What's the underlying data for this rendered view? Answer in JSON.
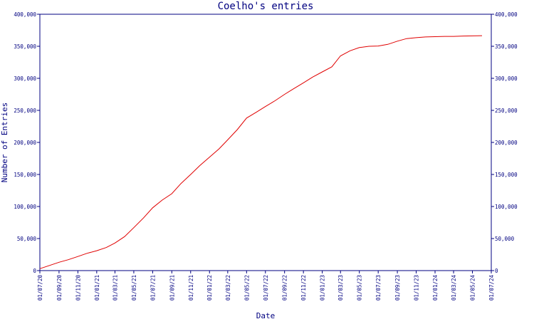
{
  "chart_data": {
    "type": "line",
    "title": "Coelho's entries",
    "xlabel": "Date",
    "ylabel": "Number of Entries",
    "ylim": [
      0,
      400000
    ],
    "y_ticks": [
      {
        "value": 0,
        "label": "0"
      },
      {
        "value": 50000,
        "label": "50,000"
      },
      {
        "value": 100000,
        "label": "100,000"
      },
      {
        "value": 150000,
        "label": "150,000"
      },
      {
        "value": 200000,
        "label": "200,000"
      },
      {
        "value": 250000,
        "label": "250,000"
      },
      {
        "value": 300000,
        "label": "300,000"
      },
      {
        "value": 350000,
        "label": "350,000"
      },
      {
        "value": 400000,
        "label": "400,000"
      }
    ],
    "x_range": [
      "2020-07-01",
      "2024-07-01"
    ],
    "x_ticks": [
      {
        "date": "2020-07-01",
        "label": "01/07/20"
      },
      {
        "date": "2020-09-01",
        "label": "01/09/20"
      },
      {
        "date": "2020-11-01",
        "label": "01/11/20"
      },
      {
        "date": "2021-01-01",
        "label": "01/01/21"
      },
      {
        "date": "2021-03-01",
        "label": "01/03/21"
      },
      {
        "date": "2021-05-01",
        "label": "01/05/21"
      },
      {
        "date": "2021-07-01",
        "label": "01/07/21"
      },
      {
        "date": "2021-09-01",
        "label": "01/09/21"
      },
      {
        "date": "2021-11-01",
        "label": "01/11/21"
      },
      {
        "date": "2022-01-01",
        "label": "01/01/22"
      },
      {
        "date": "2022-03-01",
        "label": "01/03/22"
      },
      {
        "date": "2022-05-01",
        "label": "01/05/22"
      },
      {
        "date": "2022-07-01",
        "label": "01/07/22"
      },
      {
        "date": "2022-09-01",
        "label": "01/09/22"
      },
      {
        "date": "2022-11-01",
        "label": "01/11/22"
      },
      {
        "date": "2023-01-01",
        "label": "01/01/23"
      },
      {
        "date": "2023-03-01",
        "label": "01/03/23"
      },
      {
        "date": "2023-05-01",
        "label": "01/05/23"
      },
      {
        "date": "2023-07-01",
        "label": "01/07/23"
      },
      {
        "date": "2023-09-01",
        "label": "01/09/23"
      },
      {
        "date": "2023-11-01",
        "label": "01/11/23"
      },
      {
        "date": "2024-01-01",
        "label": "01/01/24"
      },
      {
        "date": "2024-03-01",
        "label": "01/03/24"
      },
      {
        "date": "2024-05-01",
        "label": "01/05/24"
      },
      {
        "date": "2024-07-01",
        "label": "01/07/24"
      }
    ],
    "series": [
      {
        "color": "#e00000",
        "points": [
          {
            "x": "2020-07-01",
            "y": 3000
          },
          {
            "x": "2020-08-01",
            "y": 8000
          },
          {
            "x": "2020-09-01",
            "y": 13000
          },
          {
            "x": "2020-10-01",
            "y": 17000
          },
          {
            "x": "2020-11-01",
            "y": 22000
          },
          {
            "x": "2020-12-01",
            "y": 27000
          },
          {
            "x": "2021-01-01",
            "y": 31000
          },
          {
            "x": "2021-02-01",
            "y": 36000
          },
          {
            "x": "2021-03-01",
            "y": 43000
          },
          {
            "x": "2021-04-01",
            "y": 53000
          },
          {
            "x": "2021-05-01",
            "y": 67000
          },
          {
            "x": "2021-06-01",
            "y": 82000
          },
          {
            "x": "2021-07-01",
            "y": 98000
          },
          {
            "x": "2021-08-01",
            "y": 110000
          },
          {
            "x": "2021-09-01",
            "y": 120000
          },
          {
            "x": "2021-10-01",
            "y": 136000
          },
          {
            "x": "2021-11-01",
            "y": 150000
          },
          {
            "x": "2021-12-01",
            "y": 164000
          },
          {
            "x": "2022-01-01",
            "y": 177000
          },
          {
            "x": "2022-02-01",
            "y": 190000
          },
          {
            "x": "2022-03-01",
            "y": 204000
          },
          {
            "x": "2022-04-01",
            "y": 220000
          },
          {
            "x": "2022-05-01",
            "y": 238000
          },
          {
            "x": "2022-06-01",
            "y": 247000
          },
          {
            "x": "2022-07-01",
            "y": 256000
          },
          {
            "x": "2022-08-01",
            "y": 265000
          },
          {
            "x": "2022-09-01",
            "y": 275000
          },
          {
            "x": "2022-10-01",
            "y": 284000
          },
          {
            "x": "2022-11-01",
            "y": 293000
          },
          {
            "x": "2022-12-01",
            "y": 302000
          },
          {
            "x": "2023-01-01",
            "y": 310000
          },
          {
            "x": "2023-02-01",
            "y": 318000
          },
          {
            "x": "2023-03-01",
            "y": 335000
          },
          {
            "x": "2023-04-01",
            "y": 343000
          },
          {
            "x": "2023-05-01",
            "y": 348000
          },
          {
            "x": "2023-06-01",
            "y": 350000
          },
          {
            "x": "2023-07-01",
            "y": 350500
          },
          {
            "x": "2023-08-01",
            "y": 353000
          },
          {
            "x": "2023-09-01",
            "y": 358000
          },
          {
            "x": "2023-10-01",
            "y": 362000
          },
          {
            "x": "2023-11-01",
            "y": 363500
          },
          {
            "x": "2023-12-01",
            "y": 364500
          },
          {
            "x": "2024-01-01",
            "y": 365000
          },
          {
            "x": "2024-02-01",
            "y": 365500
          },
          {
            "x": "2024-03-01",
            "y": 365500
          },
          {
            "x": "2024-04-01",
            "y": 366000
          },
          {
            "x": "2024-05-01",
            "y": 366200
          },
          {
            "x": "2024-06-01",
            "y": 366500
          }
        ]
      }
    ],
    "grid": false,
    "legend": "none",
    "right_axis_mirrors_left": true
  }
}
